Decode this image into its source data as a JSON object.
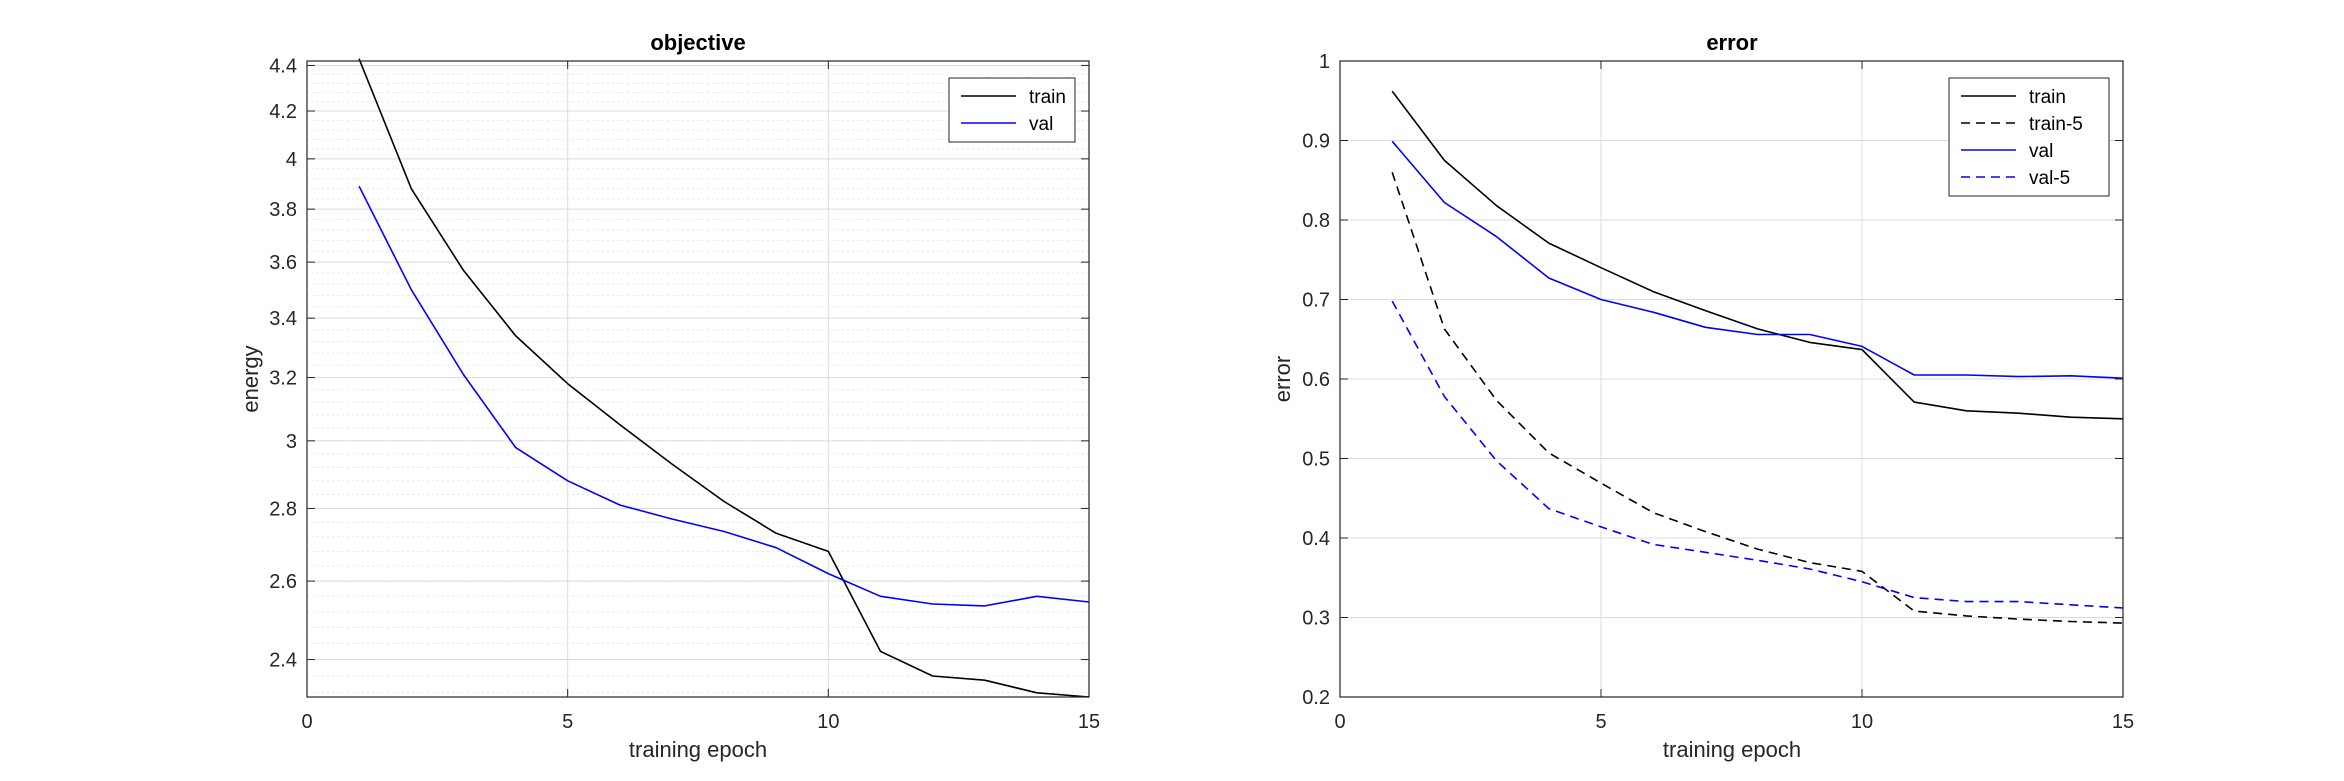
{
  "chart_data": [
    {
      "type": "line",
      "title": "objective",
      "xlabel": "training epoch",
      "ylabel": "energy",
      "yscale": "log",
      "xlim": [
        0,
        15
      ],
      "ylim": [
        2.31,
        4.42
      ],
      "xticks": [
        0,
        5,
        10,
        15
      ],
      "yticks": [
        2.4,
        2.6,
        2.8,
        3,
        3.2,
        3.4,
        3.6,
        3.8,
        4,
        4.2,
        4.4
      ],
      "ytick_labels": [
        "2.4",
        "2.6",
        "2.8",
        "3",
        "3.2",
        "3.4",
        "3.6",
        "3.8",
        "4",
        "4.2",
        "4.4"
      ],
      "grid": true,
      "minor_grid": true,
      "legend_location": "top-right",
      "x": [
        1,
        2,
        3,
        4,
        5,
        6,
        7,
        8,
        9,
        10,
        11,
        12,
        13,
        14,
        15
      ],
      "series": [
        {
          "name": "train",
          "color": "#000000",
          "style": "solid",
          "values": [
            4.43,
            3.88,
            3.57,
            3.34,
            3.18,
            3.05,
            2.93,
            2.82,
            2.73,
            2.68,
            2.42,
            2.36,
            2.35,
            2.32,
            2.31
          ]
        },
        {
          "name": "val",
          "color": "#0000ff",
          "style": "solid",
          "values": [
            3.89,
            3.5,
            3.21,
            2.98,
            2.88,
            2.81,
            2.77,
            2.735,
            2.69,
            2.62,
            2.56,
            2.54,
            2.535,
            2.56,
            2.545
          ]
        }
      ]
    },
    {
      "type": "line",
      "title": "error",
      "xlabel": "training epoch",
      "ylabel": "error",
      "xlim": [
        0,
        15
      ],
      "ylim": [
        0.2,
        1
      ],
      "xticks": [
        0,
        5,
        10,
        15
      ],
      "yticks": [
        0.2,
        0.3,
        0.4,
        0.5,
        0.6,
        0.7,
        0.8,
        0.9,
        1
      ],
      "ytick_labels": [
        "0.2",
        "0.3",
        "0.4",
        "0.5",
        "0.6",
        "0.7",
        "0.8",
        "0.9",
        "1"
      ],
      "grid": true,
      "legend_location": "top-right",
      "x": [
        1,
        2,
        3,
        4,
        5,
        6,
        7,
        8,
        9,
        10,
        11,
        12,
        13,
        14,
        15
      ],
      "series": [
        {
          "name": "train",
          "color": "#000000",
          "style": "solid",
          "values": [
            0.962,
            0.875,
            0.818,
            0.771,
            0.74,
            0.71,
            0.686,
            0.663,
            0.646,
            0.637,
            0.571,
            0.56,
            0.557,
            0.552,
            0.55
          ]
        },
        {
          "name": "train-5",
          "color": "#000000",
          "style": "dashed",
          "values": [
            0.86,
            0.663,
            0.573,
            0.507,
            0.469,
            0.432,
            0.408,
            0.386,
            0.369,
            0.358,
            0.308,
            0.302,
            0.298,
            0.295,
            0.293
          ]
        },
        {
          "name": "val",
          "color": "#0000ff",
          "style": "solid",
          "values": [
            0.899,
            0.822,
            0.779,
            0.727,
            0.7,
            0.684,
            0.665,
            0.656,
            0.656,
            0.641,
            0.605,
            0.605,
            0.603,
            0.604,
            0.601
          ]
        },
        {
          "name": "val-5",
          "color": "#0000ff",
          "style": "dashed",
          "values": [
            0.698,
            0.578,
            0.497,
            0.437,
            0.414,
            0.392,
            0.382,
            0.372,
            0.361,
            0.345,
            0.325,
            0.32,
            0.32,
            0.316,
            0.312
          ]
        }
      ]
    }
  ]
}
